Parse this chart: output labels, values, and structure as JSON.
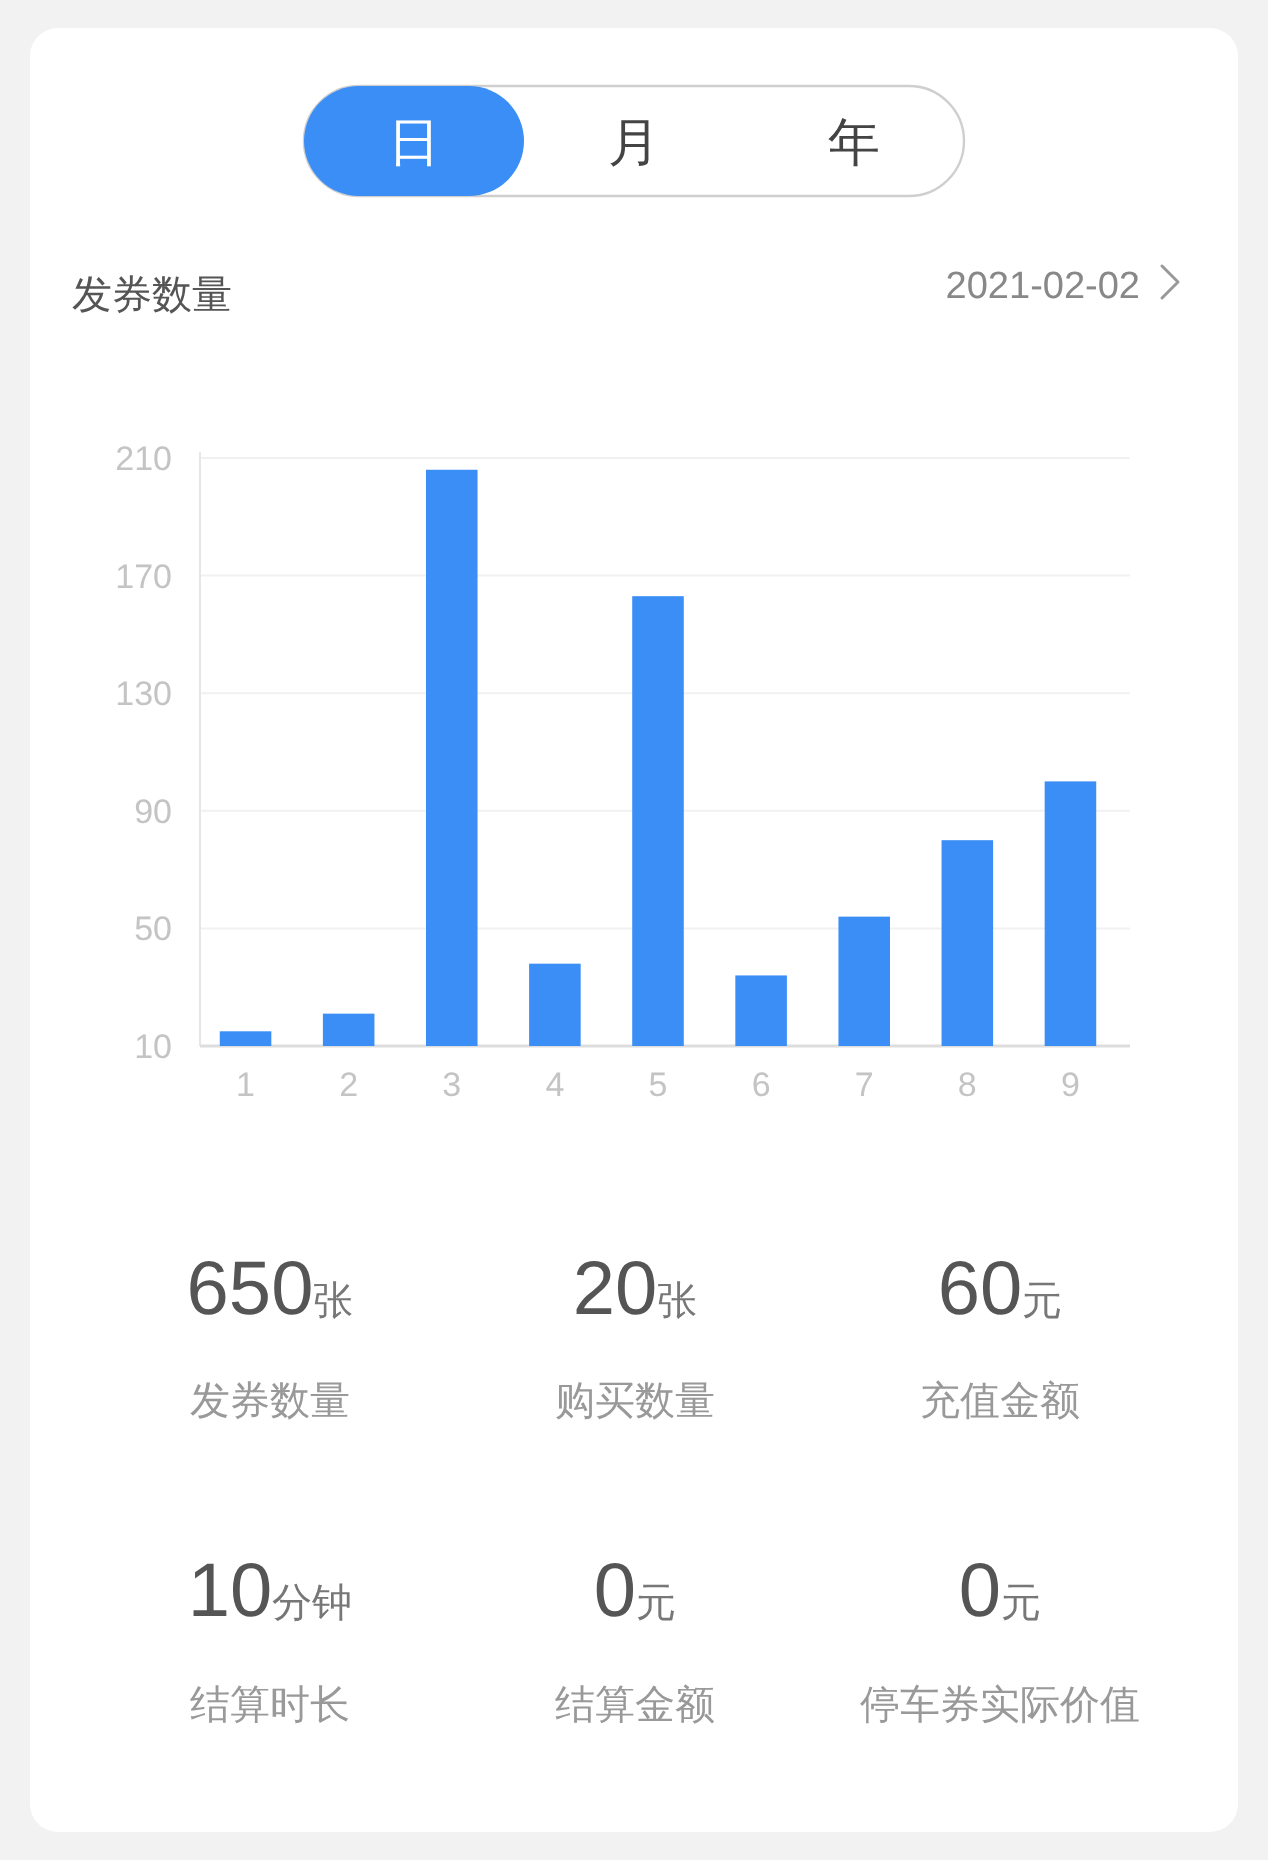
{
  "chart_data": [
    {
      "type": "bar",
      "title": "发券数量",
      "subtitle": "2021-02-02",
      "annotations": [
        "日",
        "月",
        "年"
      ],
      "categories": [
        "1",
        "2",
        "3",
        "4",
        "5",
        "6",
        "7",
        "8",
        "9"
      ],
      "values": [
        15,
        21,
        206,
        38,
        163,
        34,
        54,
        80,
        100
      ],
      "color": "#3a8ef6",
      "ylim": [
        10,
        210
      ],
      "yticks": [
        10,
        50,
        90,
        130,
        170,
        210
      ],
      "grid": "y"
    },
    {
      "type": "other",
      "categories": [
        "发券数量",
        "购买数量",
        "充值金额",
        "结算时长",
        "结算金额",
        "停车券实际价值"
      ],
      "values": [
        650,
        20,
        60,
        10,
        0,
        0
      ],
      "value_labels": [
        "650张",
        "20张",
        "60元",
        "10分钟",
        "0元",
        "0元"
      ]
    }
  ]
}
